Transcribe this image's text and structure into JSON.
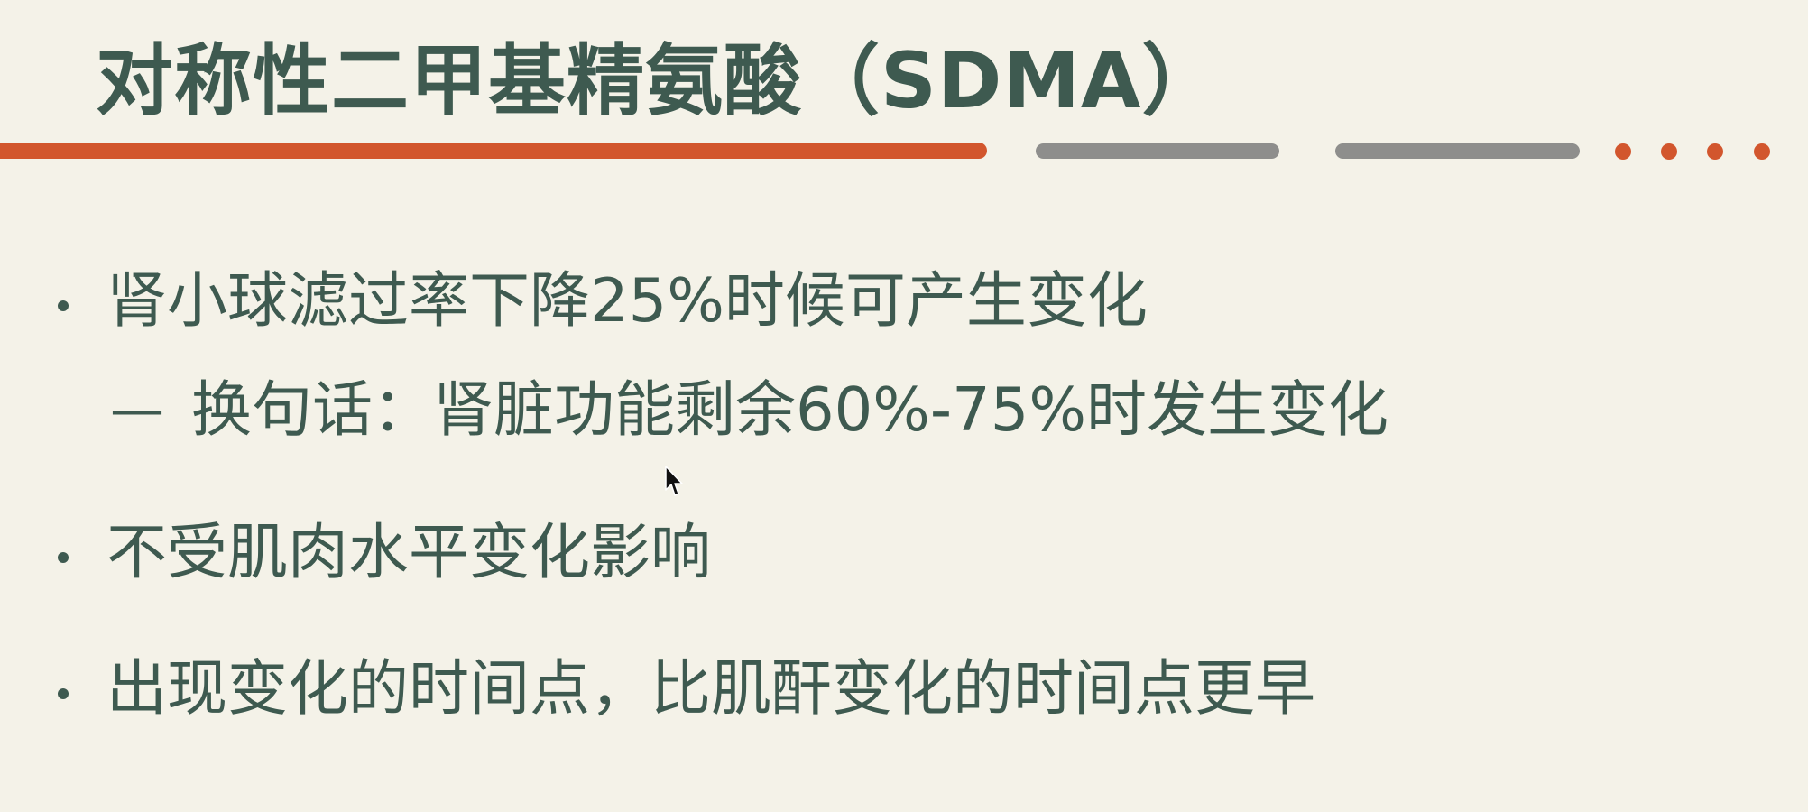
{
  "slide": {
    "title": "对称性二甲基精氨酸（SDMA）",
    "bullets": [
      {
        "text": "肾小球滤过率下降25%时候可产生变化",
        "sub": {
          "dash": "—",
          "text": "换句话：肾脏功能剩余60%-75%时发生变化"
        }
      },
      {
        "text": "不受肌肉水平变化影响"
      },
      {
        "text": "出现变化的时间点，比肌酐变化的时间点更早"
      }
    ]
  },
  "colors": {
    "background": "#f4f2e8",
    "text": "#3e5a50",
    "accent": "#d2562d",
    "rule_gray": "#8e8e8c"
  },
  "icons": {
    "cursor": "mouse-pointer-icon"
  }
}
